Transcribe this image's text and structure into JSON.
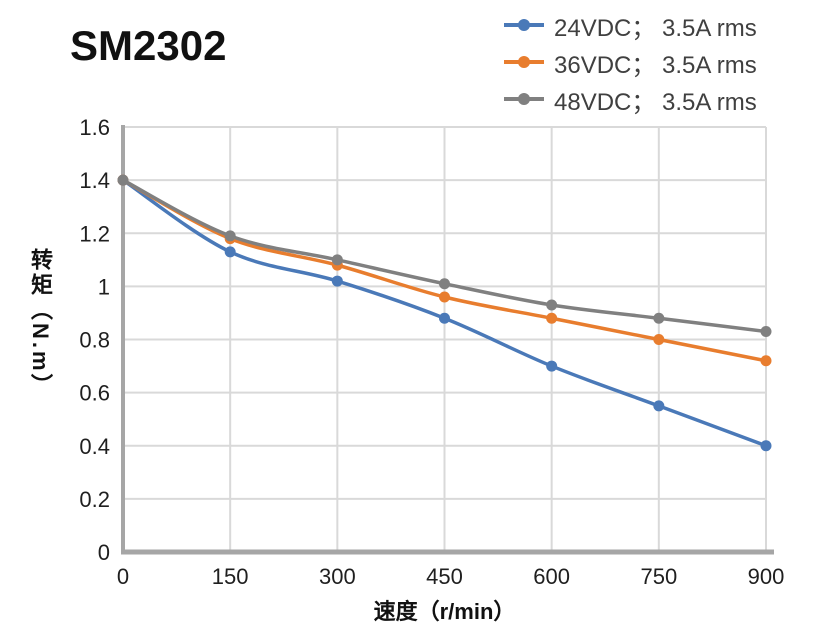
{
  "chart_data": {
    "type": "line",
    "title": "SM2302",
    "xlabel": "速度（r/min）",
    "ylabel": "转矩（N.m）",
    "x": [
      0,
      150,
      300,
      450,
      600,
      750,
      900
    ],
    "xlim": [
      0,
      900
    ],
    "ylim": [
      0,
      1.6
    ],
    "xticks": [
      "0",
      "150",
      "300",
      "450",
      "600",
      "750",
      "900"
    ],
    "yticks": [
      "0",
      "0.2",
      "0.4",
      "0.6",
      "0.8",
      "1",
      "1.2",
      "1.4",
      "1.6"
    ],
    "grid": true,
    "smooth": true,
    "legend_position": "top-right",
    "series": [
      {
        "name": "24VDC；  3.5A rms",
        "color": "#4A79B8",
        "values": [
          1.4,
          1.13,
          1.02,
          0.88,
          0.7,
          0.55,
          0.4
        ]
      },
      {
        "name": "36VDC；  3.5A rms",
        "color": "#E87D2E",
        "values": [
          1.4,
          1.18,
          1.08,
          0.96,
          0.88,
          0.8,
          0.72
        ]
      },
      {
        "name": "48VDC；  3.5A rms",
        "color": "#808080",
        "values": [
          1.4,
          1.19,
          1.1,
          1.01,
          0.93,
          0.88,
          0.83
        ]
      }
    ],
    "colors": {
      "gridline": "#D9D9D9",
      "axis": "#A6A6A6",
      "tick_text": "#1F1F1F",
      "legend_text": "#404040",
      "title_text": "#111111"
    }
  }
}
